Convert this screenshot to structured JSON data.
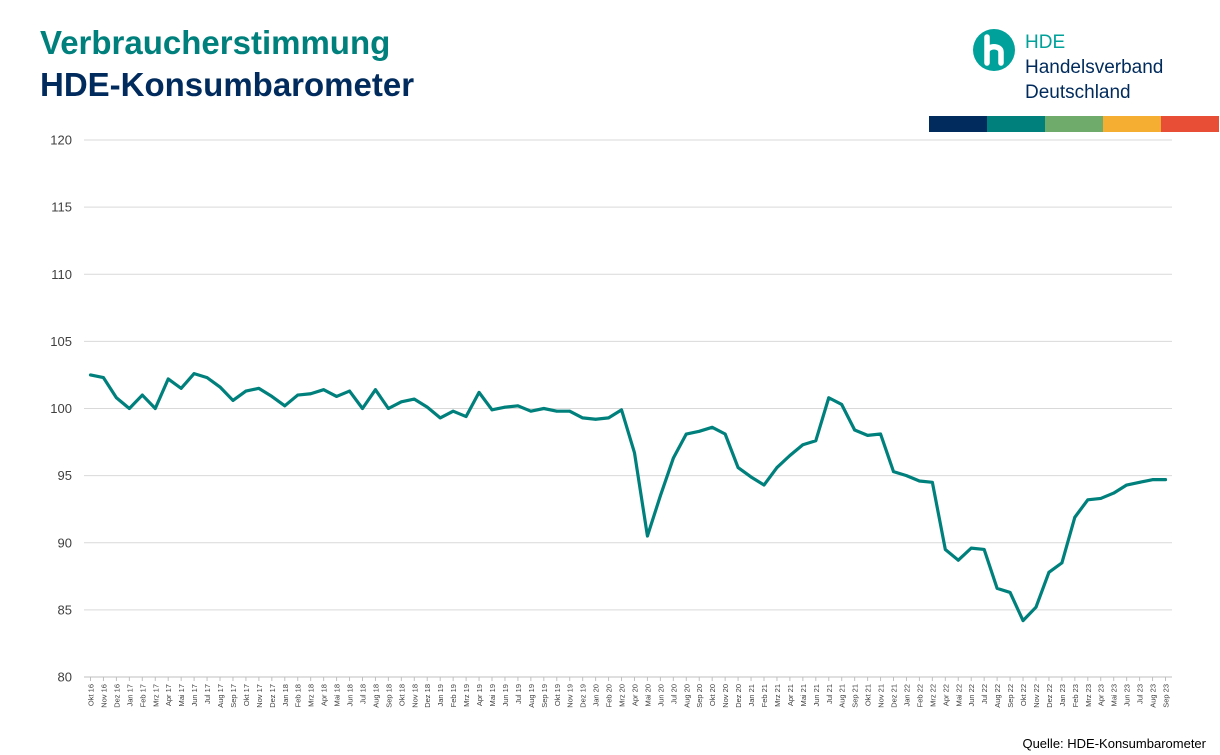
{
  "header": {
    "title_line1": "Verbraucherstimmung",
    "title_line2": "HDE-Konsumbarometer"
  },
  "logo": {
    "icon": "hde-h-logo-icon",
    "line1": "HDE",
    "line2": "Handelsverband",
    "line3": "Deutschland",
    "color": "#00a19a"
  },
  "colorbar": [
    "#002b5c",
    "#00807c",
    "#6fab6a",
    "#f5ae32",
    "#e84d35"
  ],
  "colors": {
    "title_primary": "#00807c",
    "title_secondary": "#002b5c",
    "line": "#00807c",
    "grid": "#d9d9d9"
  },
  "source": "Quelle: HDE-Konsumbarometer",
  "chart_data": {
    "type": "line",
    "title": "",
    "xlabel": "",
    "ylabel": "",
    "ylim": [
      80,
      120
    ],
    "yticks": [
      80,
      85,
      90,
      95,
      100,
      105,
      110,
      115,
      120
    ],
    "grid": true,
    "x": [
      "Okt 16",
      "Nov 16",
      "Dez 16",
      "Jan 17",
      "Feb 17",
      "Mrz 17",
      "Apr 17",
      "Mai 17",
      "Jun 17",
      "Jul 17",
      "Aug 17",
      "Sep 17",
      "Okt 17",
      "Nov 17",
      "Dez 17",
      "Jan 18",
      "Feb 18",
      "Mrz 18",
      "Apr 18",
      "Mai 18",
      "Jun 18",
      "Jul 18",
      "Aug 18",
      "Sep 18",
      "Okt 18",
      "Nov 18",
      "Dez 18",
      "Jan 19",
      "Feb 19",
      "Mrz 19",
      "Apr 19",
      "Mai 19",
      "Jun 19",
      "Jul 19",
      "Aug 19",
      "Sep 19",
      "Okt 19",
      "Nov 19",
      "Dez 19",
      "Jan 20",
      "Feb 20",
      "Mrz 20",
      "Apr 20",
      "Mai 20",
      "Jun 20",
      "Jul 20",
      "Aug 20",
      "Sep 20",
      "Okt 20",
      "Nov 20",
      "Dez 20",
      "Jan 21",
      "Feb 21",
      "Mrz 21",
      "Apr 21",
      "Mai 21",
      "Jun 21",
      "Jul 21",
      "Aug 21",
      "Sep 21",
      "Okt 21",
      "Nov 21",
      "Dez 21",
      "Jan 22",
      "Feb 22",
      "Mrz 22",
      "Apr 22",
      "Mai 22",
      "Jun 22",
      "Jul 22",
      "Aug 22",
      "Sep 22",
      "Okt 22",
      "Nov 22",
      "Dez 22",
      "Jan 23",
      "Feb 23",
      "Mrz 23",
      "Apr 23",
      "Mai 23",
      "Jun 23",
      "Jul 23",
      "Aug 23",
      "Sep 23"
    ],
    "series": [
      {
        "values": [
          102.5,
          102.3,
          100.8,
          100.0,
          101.0,
          100.0,
          102.2,
          101.5,
          102.6,
          102.3,
          101.6,
          100.6,
          101.3,
          101.5,
          100.9,
          100.2,
          101.0,
          101.1,
          101.4,
          100.9,
          101.3,
          100.0,
          101.4,
          100.0,
          100.5,
          100.7,
          100.1,
          99.3,
          99.8,
          99.4,
          101.2,
          99.9,
          100.1,
          100.2,
          99.8,
          100.0,
          99.8,
          99.8,
          99.3,
          99.2,
          99.3,
          99.9,
          96.7,
          90.5,
          93.5,
          96.3,
          98.1,
          98.3,
          98.6,
          98.1,
          95.6,
          94.9,
          94.3,
          95.6,
          96.5,
          97.3,
          97.6,
          100.8,
          100.3,
          98.4,
          98.0,
          98.1,
          95.3,
          95.0,
          94.6,
          94.5,
          89.5,
          88.7,
          89.6,
          89.5,
          86.6,
          86.3,
          84.2,
          85.2,
          87.8,
          88.5,
          91.9,
          93.2,
          93.3,
          93.7,
          94.3,
          94.5,
          94.7,
          94.7
        ]
      }
    ]
  }
}
